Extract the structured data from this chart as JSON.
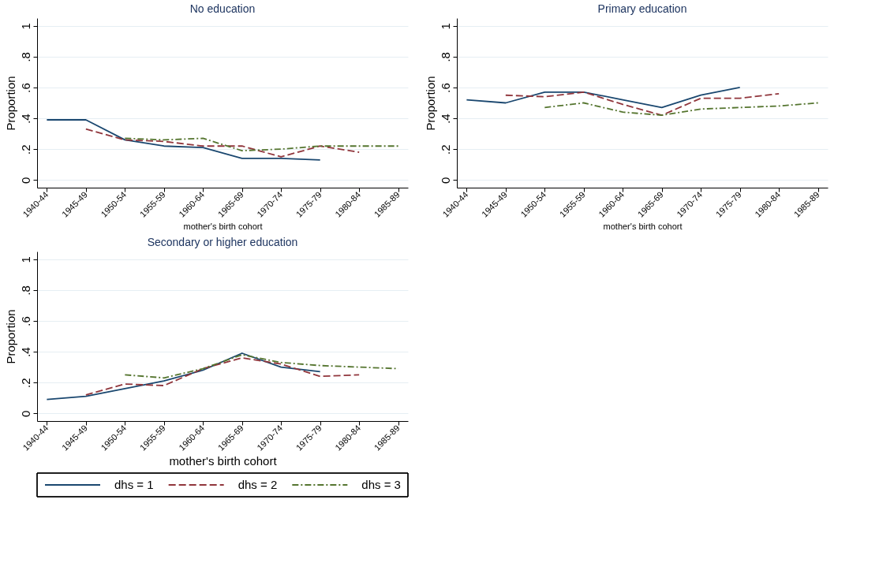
{
  "chart_data": [
    {
      "type": "line",
      "title": "No education",
      "xlabel": "mother's birth cohort",
      "ylabel": "Proportion",
      "categories": [
        "1940-44",
        "1945-49",
        "1950-54",
        "1955-59",
        "1960-64",
        "1965-69",
        "1970-74",
        "1975-79",
        "1980-84",
        "1985-89"
      ],
      "ylim": [
        -0.05,
        1.05
      ],
      "yticks": [
        0,
        {
          "value": 0.2,
          "label": ".2"
        },
        {
          "value": 0.4,
          "label": ".4"
        },
        {
          "value": 0.6,
          "label": ".6"
        },
        {
          "value": 0.8,
          "label": ".8"
        },
        1
      ],
      "grid": "y",
      "series": [
        {
          "color": "#1a476f",
          "line_style": "solid",
          "values": [
            0.39,
            0.39,
            0.26,
            0.22,
            0.21,
            0.14,
            0.14,
            0.13,
            null,
            null
          ]
        },
        {
          "color": "#90353b",
          "line_style": "dashed",
          "values": [
            null,
            0.33,
            0.26,
            0.25,
            0.22,
            0.22,
            0.15,
            0.22,
            0.18,
            null
          ]
        },
        {
          "color": "#55752f",
          "line_style": "dotted",
          "values": [
            null,
            null,
            0.27,
            0.26,
            0.27,
            0.19,
            0.2,
            0.22,
            0.22,
            0.22
          ]
        }
      ]
    },
    {
      "type": "line",
      "title": "Primary education",
      "xlabel": "mother's birth cohort",
      "ylabel": "Proportion",
      "categories": [
        "1940-44",
        "1945-49",
        "1950-54",
        "1955-59",
        "1960-64",
        "1965-69",
        "1970-74",
        "1975-79",
        "1980-84",
        "1985-89"
      ],
      "ylim": [
        -0.05,
        1.05
      ],
      "yticks": [
        0,
        {
          "value": 0.2,
          "label": ".2"
        },
        {
          "value": 0.4,
          "label": ".4"
        },
        {
          "value": 0.6,
          "label": ".6"
        },
        {
          "value": 0.8,
          "label": ".8"
        },
        1
      ],
      "grid": "y",
      "series": [
        {
          "color": "#1a476f",
          "line_style": "solid",
          "values": [
            0.52,
            0.5,
            0.57,
            0.57,
            0.52,
            0.47,
            0.55,
            0.6,
            null,
            null
          ]
        },
        {
          "color": "#90353b",
          "line_style": "dashed",
          "values": [
            null,
            0.55,
            0.54,
            0.57,
            0.49,
            0.42,
            0.53,
            0.53,
            0.56,
            null
          ]
        },
        {
          "color": "#55752f",
          "line_style": "dotted",
          "values": [
            null,
            null,
            0.47,
            0.5,
            0.44,
            0.42,
            0.46,
            0.47,
            0.48,
            0.5
          ]
        }
      ]
    },
    {
      "type": "line",
      "title": "Secondary or higher education",
      "xlabel": "mother's birth cohort",
      "ylabel": "Proportion",
      "categories": [
        "1940-44",
        "1945-49",
        "1950-54",
        "1955-59",
        "1960-64",
        "1965-69",
        "1970-74",
        "1975-79",
        "1980-84",
        "1985-89"
      ],
      "ylim": [
        -0.05,
        1.05
      ],
      "yticks": [
        0,
        {
          "value": 0.2,
          "label": ".2"
        },
        {
          "value": 0.4,
          "label": ".4"
        },
        {
          "value": 0.6,
          "label": ".6"
        },
        {
          "value": 0.8,
          "label": ".8"
        },
        1
      ],
      "grid": "y",
      "legend": "bottom",
      "series": [
        {
          "name": "dhs = 1",
          "color": "#1a476f",
          "line_style": "solid",
          "values": [
            0.09,
            0.11,
            0.16,
            0.21,
            0.28,
            0.39,
            0.3,
            0.27,
            null,
            null
          ]
        },
        {
          "name": "dhs = 2",
          "color": "#90353b",
          "line_style": "dashed",
          "values": [
            null,
            0.12,
            0.19,
            0.18,
            0.29,
            0.36,
            0.32,
            0.24,
            0.25,
            null
          ]
        },
        {
          "name": "dhs = 3",
          "color": "#55752f",
          "line_style": "dotted",
          "values": [
            null,
            null,
            0.25,
            0.23,
            0.29,
            0.38,
            0.33,
            0.31,
            0.3,
            0.29
          ]
        }
      ]
    }
  ]
}
